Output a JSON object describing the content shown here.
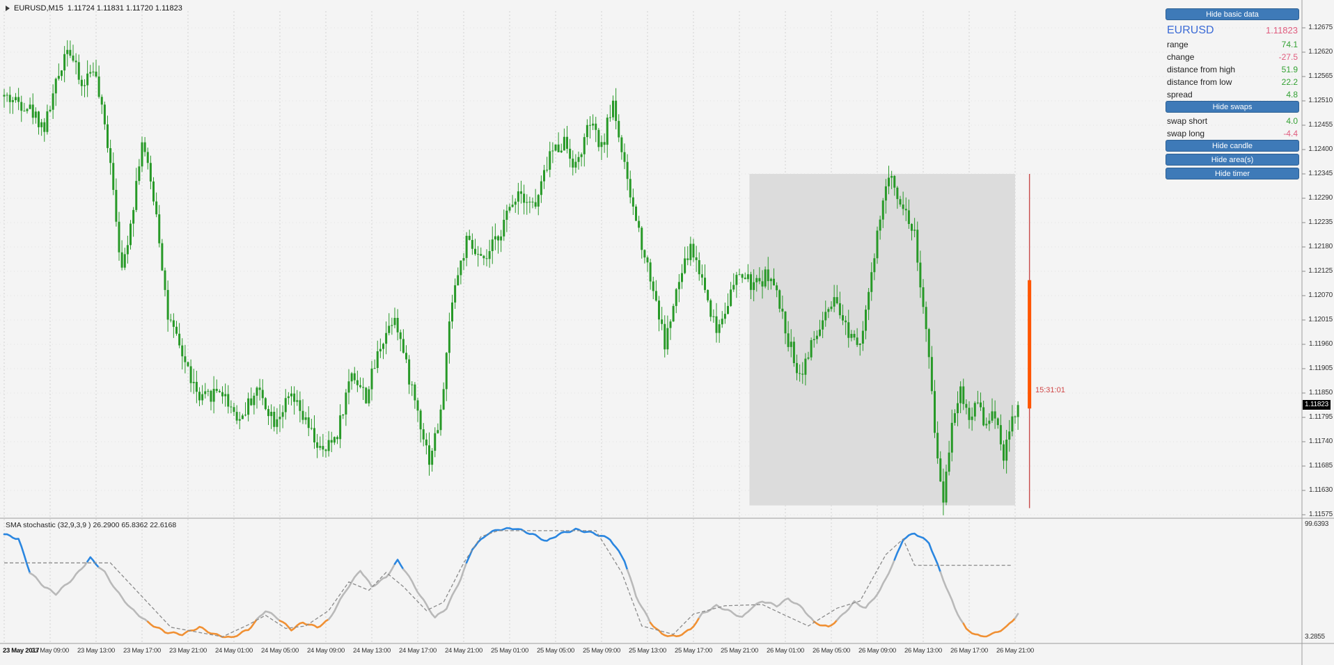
{
  "title_bar": {
    "symbol_timeframe": "EURUSD,M15",
    "ohlc": "1.11724 1.11831 1.11720 1.11823"
  },
  "panel": {
    "buttons": [
      {
        "label": "Hide basic data"
      },
      {
        "label": "Hide swaps"
      },
      {
        "label": "Hide candle"
      },
      {
        "label": "Hide area(s)"
      },
      {
        "label": "Hide timer"
      }
    ],
    "symbol": "EURUSD",
    "price": "1.11823",
    "stats": [
      {
        "label": "range",
        "value": "74.1",
        "tone": "positive"
      },
      {
        "label": "change",
        "value": "-27.5",
        "tone": "negative"
      },
      {
        "label": "distance from high",
        "value": "51.9",
        "tone": "positive"
      },
      {
        "label": "distance from low",
        "value": "22.2",
        "tone": "positive"
      },
      {
        "label": "spread",
        "value": "4.8",
        "tone": "positive"
      }
    ],
    "swaps": [
      {
        "label": "swap short",
        "value": "4.0",
        "tone": "positive"
      },
      {
        "label": "swap long",
        "value": "-4.4",
        "tone": "negative"
      }
    ]
  },
  "timer": {
    "text": "15:31:01"
  },
  "indicator_label": "SMA stochastic (32,9,3,9 ) 26.2900 65.8362 22.6168",
  "price_axis": {
    "ticks": [
      "1.12675",
      "1.12620",
      "1.12565",
      "1.12510",
      "1.12455",
      "1.12400",
      "1.12345",
      "1.12290",
      "1.12235",
      "1.12180",
      "1.12125",
      "1.12070",
      "1.12015",
      "1.11960",
      "1.11905",
      "1.11850",
      "1.11795",
      "1.11740",
      "1.11685",
      "1.11630",
      "1.11575"
    ],
    "current": "1.11823"
  },
  "stoch_axis": {
    "top": "99.6393",
    "bottom": "3.2855"
  },
  "time_axis": [
    "23 May 2017",
    "23 May 09:00",
    "23 May 13:00",
    "23 May 17:00",
    "23 May 21:00",
    "24 May 01:00",
    "24 May 05:00",
    "24 May 09:00",
    "24 May 13:00",
    "24 May 17:00",
    "24 May 21:00",
    "25 May 01:00",
    "25 May 05:00",
    "25 May 09:00",
    "25 May 13:00",
    "25 May 17:00",
    "25 May 21:00",
    "26 May 01:00",
    "26 May 05:00",
    "26 May 09:00",
    "26 May 13:00",
    "26 May 17:00",
    "26 May 21:00"
  ],
  "colors": {
    "accent_button": "#3e7ab8",
    "positive": "#33a133",
    "negative": "#e05c7e",
    "symbol_blue": "#3b6bd6",
    "timer_red": "#d04545",
    "candle_green": "#279927",
    "stoch_gray": "#b9b9b9",
    "stoch_blue": "#2a86e0",
    "stoch_orange": "#f09033",
    "stoch_signal": "#8a8a8a",
    "area_gray": "#dcdcdc",
    "current_line_red": "#c74a4a",
    "current_candle_orange": "#ff5500",
    "grid_vertical": "#d2d2d2",
    "grid_horizontal": "#e2e2e2",
    "separator": "#9b9b9b",
    "background": "#f4f4f4"
  },
  "chart_data": {
    "price_chart": {
      "type": "candlestick",
      "symbol": "EURUSD",
      "timeframe": "M15",
      "open": 1.11724,
      "high": 1.11831,
      "low": 1.1172,
      "close": 1.11823,
      "candle_count": 354,
      "last_close": 1.11823,
      "axis": {
        "top_tick": 1.12675,
        "bottom_tick": 1.11575,
        "tick_step": 0.00055,
        "current_price": 1.11823
      },
      "price_path_anchors": [
        [
          0,
          1.1252
        ],
        [
          8,
          1.125
        ],
        [
          14,
          1.1245
        ],
        [
          22,
          1.1264
        ],
        [
          27,
          1.1254
        ],
        [
          31,
          1.1259
        ],
        [
          37,
          1.1238
        ],
        [
          41,
          1.1212
        ],
        [
          45,
          1.1228
        ],
        [
          48,
          1.1242
        ],
        [
          53,
          1.1226
        ],
        [
          57,
          1.1202
        ],
        [
          63,
          1.1192
        ],
        [
          68,
          1.1183
        ],
        [
          75,
          1.1186
        ],
        [
          82,
          1.1179
        ],
        [
          88,
          1.1186
        ],
        [
          94,
          1.1179
        ],
        [
          100,
          1.1184
        ],
        [
          106,
          1.1177
        ],
        [
          111,
          1.1171
        ],
        [
          116,
          1.1176
        ],
        [
          121,
          1.119
        ],
        [
          126,
          1.1184
        ],
        [
          131,
          1.1196
        ],
        [
          136,
          1.1203
        ],
        [
          140,
          1.1191
        ],
        [
          144,
          1.1181
        ],
        [
          148,
          1.117
        ],
        [
          152,
          1.118
        ],
        [
          156,
          1.1207
        ],
        [
          161,
          1.1219
        ],
        [
          167,
          1.1214
        ],
        [
          173,
          1.1222
        ],
        [
          179,
          1.1231
        ],
        [
          185,
          1.1227
        ],
        [
          190,
          1.1239
        ],
        [
          195,
          1.1242
        ],
        [
          199,
          1.1236
        ],
        [
          204,
          1.1246
        ],
        [
          208,
          1.124
        ],
        [
          212,
          1.1251
        ],
        [
          217,
          1.1232
        ],
        [
          222,
          1.1219
        ],
        [
          227,
          1.1206
        ],
        [
          230,
          1.1196
        ],
        [
          235,
          1.121
        ],
        [
          239,
          1.1218
        ],
        [
          243,
          1.1211
        ],
        [
          248,
          1.1199
        ],
        [
          252,
          1.1206
        ],
        [
          256,
          1.1212
        ],
        [
          261,
          1.1209
        ],
        [
          266,
          1.1212
        ],
        [
          269,
          1.1207
        ],
        [
          273,
          1.1197
        ],
        [
          277,
          1.1189
        ],
        [
          280,
          1.1194
        ],
        [
          285,
          1.1201
        ],
        [
          289,
          1.1205
        ],
        [
          294,
          1.1199
        ],
        [
          298,
          1.1197
        ],
        [
          302,
          1.1211
        ],
        [
          306,
          1.1229
        ],
        [
          309,
          1.1234
        ],
        [
          313,
          1.1227
        ],
        [
          317,
          1.1221
        ],
        [
          320,
          1.1204
        ],
        [
          322,
          1.1192
        ],
        [
          325,
          1.117
        ],
        [
          327,
          1.1161
        ],
        [
          330,
          1.1179
        ],
        [
          333,
          1.1186
        ],
        [
          336,
          1.1179
        ],
        [
          339,
          1.1184
        ],
        [
          342,
          1.1177
        ],
        [
          345,
          1.1181
        ],
        [
          348,
          1.1171
        ],
        [
          351,
          1.1179
        ],
        [
          353,
          1.11823
        ]
      ],
      "highlight_area": {
        "start_index": 259.5,
        "end_index": 352,
        "price_top": 1.12345,
        "price_bottom": 1.11596
      },
      "current_candle_marker": {
        "line_top": 1.12345,
        "line_bottom": 1.1159,
        "body_high": 1.12105,
        "body_low": 1.11815,
        "x_index": 357
      }
    },
    "stochastic": {
      "type": "line",
      "title": "SMA stochastic (32,9,3,9 )",
      "values": [
        26.29,
        65.8362,
        22.6168
      ],
      "ylim": [
        3.2855,
        99.6393
      ],
      "blue_threshold": 66,
      "orange_threshold": 20,
      "main_anchors": [
        [
          0,
          92
        ],
        [
          5,
          88
        ],
        [
          9,
          60
        ],
        [
          14,
          48
        ],
        [
          18,
          42
        ],
        [
          24,
          55
        ],
        [
          30,
          72
        ],
        [
          35,
          60
        ],
        [
          39,
          45
        ],
        [
          44,
          30
        ],
        [
          50,
          18
        ],
        [
          56,
          10
        ],
        [
          62,
          8
        ],
        [
          68,
          14
        ],
        [
          73,
          8
        ],
        [
          79,
          5
        ],
        [
          85,
          12
        ],
        [
          91,
          28
        ],
        [
          95,
          22
        ],
        [
          100,
          12
        ],
        [
          104,
          18
        ],
        [
          109,
          14
        ],
        [
          113,
          20
        ],
        [
          119,
          45
        ],
        [
          124,
          62
        ],
        [
          128,
          48
        ],
        [
          133,
          56
        ],
        [
          137,
          70
        ],
        [
          140,
          60
        ],
        [
          145,
          40
        ],
        [
          150,
          22
        ],
        [
          154,
          30
        ],
        [
          159,
          55
        ],
        [
          163,
          80
        ],
        [
          168,
          92
        ],
        [
          172,
          96
        ],
        [
          178,
          97
        ],
        [
          184,
          92
        ],
        [
          189,
          86
        ],
        [
          193,
          92
        ],
        [
          199,
          96
        ],
        [
          205,
          93
        ],
        [
          211,
          88
        ],
        [
          216,
          70
        ],
        [
          220,
          40
        ],
        [
          225,
          18
        ],
        [
          229,
          8
        ],
        [
          234,
          6
        ],
        [
          239,
          12
        ],
        [
          243,
          25
        ],
        [
          248,
          32
        ],
        [
          252,
          28
        ],
        [
          257,
          22
        ],
        [
          260,
          30
        ],
        [
          264,
          36
        ],
        [
          269,
          32
        ],
        [
          273,
          38
        ],
        [
          278,
          30
        ],
        [
          282,
          18
        ],
        [
          287,
          14
        ],
        [
          291,
          22
        ],
        [
          296,
          35
        ],
        [
          300,
          30
        ],
        [
          305,
          45
        ],
        [
          310,
          70
        ],
        [
          313,
          88
        ],
        [
          317,
          93
        ],
        [
          322,
          85
        ],
        [
          326,
          60
        ],
        [
          331,
          30
        ],
        [
          335,
          12
        ],
        [
          340,
          6
        ],
        [
          344,
          8
        ],
        [
          349,
          14
        ],
        [
          353,
          25
        ]
      ],
      "signal_anchors": [
        [
          0,
          68
        ],
        [
          37,
          68
        ],
        [
          58,
          14
        ],
        [
          67,
          10
        ],
        [
          76,
          6
        ],
        [
          85,
          16
        ],
        [
          91,
          24
        ],
        [
          98,
          13
        ],
        [
          105,
          15
        ],
        [
          113,
          28
        ],
        [
          120,
          52
        ],
        [
          127,
          45
        ],
        [
          133,
          60
        ],
        [
          139,
          48
        ],
        [
          147,
          28
        ],
        [
          153,
          35
        ],
        [
          160,
          68
        ],
        [
          166,
          90
        ],
        [
          172,
          95
        ],
        [
          206,
          95
        ],
        [
          215,
          60
        ],
        [
          222,
          15
        ],
        [
          233,
          8
        ],
        [
          240,
          25
        ],
        [
          251,
          32
        ],
        [
          264,
          33
        ],
        [
          271,
          25
        ],
        [
          280,
          15
        ],
        [
          290,
          30
        ],
        [
          298,
          36
        ],
        [
          307,
          75
        ],
        [
          313,
          88
        ],
        [
          317,
          66
        ],
        [
          351,
          66
        ]
      ]
    }
  }
}
